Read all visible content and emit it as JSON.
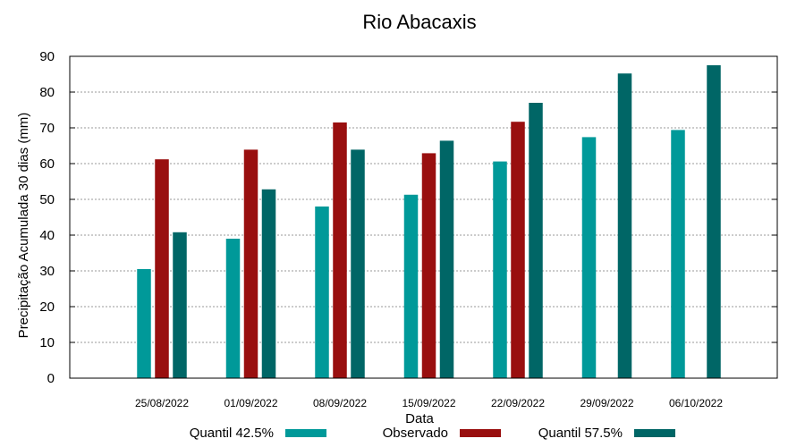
{
  "chart_data": {
    "type": "bar",
    "title": "Rio Abacaxis",
    "xlabel": "Data",
    "ylabel": "Precipitação Acumulada 30 dias (mm)",
    "ylim": [
      0,
      90
    ],
    "yticks": [
      0,
      10,
      20,
      30,
      40,
      50,
      60,
      70,
      80,
      90
    ],
    "grid": true,
    "legend_position": "bottom",
    "categories": [
      "25/08/2022",
      "01/09/2022",
      "08/09/2022",
      "15/09/2022",
      "22/09/2022",
      "29/09/2022",
      "06/10/2022"
    ],
    "series": [
      {
        "name": "Quantil 42.5%",
        "color": "#009999",
        "values": [
          30.5,
          39,
          48,
          51.3,
          60.6,
          67.4,
          69.4
        ]
      },
      {
        "name": "Observado",
        "color": "#990f0f",
        "values": [
          61.2,
          63.9,
          71.5,
          62.9,
          71.7,
          null,
          null
        ]
      },
      {
        "name": "Quantil 57.5%",
        "color": "#006666",
        "values": [
          40.8,
          52.8,
          63.9,
          66.4,
          77,
          85.2,
          87.5
        ]
      }
    ]
  }
}
